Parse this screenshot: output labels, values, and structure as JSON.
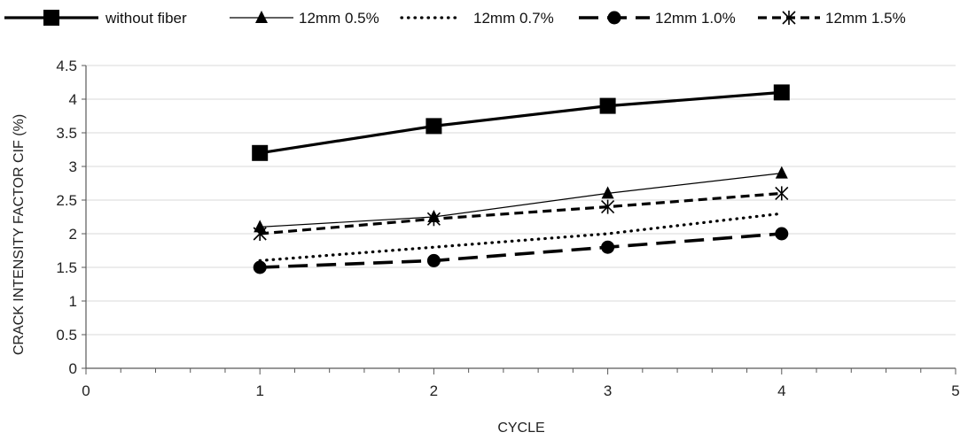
{
  "chart_data": {
    "type": "line",
    "title": "",
    "xlabel": "CYCLE",
    "ylabel": "CRACK INTENSITY FACTOR CIF (%)",
    "xlim": [
      0,
      5
    ],
    "ylim": [
      0,
      4.5
    ],
    "x_ticks": [
      "0",
      "1",
      "2",
      "3",
      "4",
      "5"
    ],
    "y_ticks": [
      "0",
      "0.5",
      "1",
      "1.5",
      "2",
      "2.5",
      "3",
      "3.5",
      "4",
      "4.5"
    ],
    "grid": "horizontal",
    "legend_position": "top",
    "x": [
      1,
      2,
      3,
      4
    ],
    "series": [
      {
        "name": "without fiber",
        "values": [
          3.2,
          3.6,
          3.9,
          4.1
        ],
        "marker": "square",
        "line": "solid-thick"
      },
      {
        "name": "12mm 0.5%",
        "values": [
          2.1,
          2.25,
          2.6,
          2.9
        ],
        "marker": "triangle",
        "line": "solid-thin"
      },
      {
        "name": "12mm 0.7%",
        "values": [
          1.6,
          1.8,
          2.0,
          2.3
        ],
        "marker": "none",
        "line": "dotted"
      },
      {
        "name": "12mm 1.0%",
        "values": [
          1.5,
          1.6,
          1.8,
          2.0
        ],
        "marker": "circle",
        "line": "long-dash"
      },
      {
        "name": "12mm 1.5%",
        "values": [
          2.0,
          2.22,
          2.4,
          2.6
        ],
        "marker": "asterisk",
        "line": "dashed"
      }
    ],
    "colors": {
      "series": "#000000",
      "grid": "#d9d9d9",
      "axis": "#595959"
    }
  }
}
